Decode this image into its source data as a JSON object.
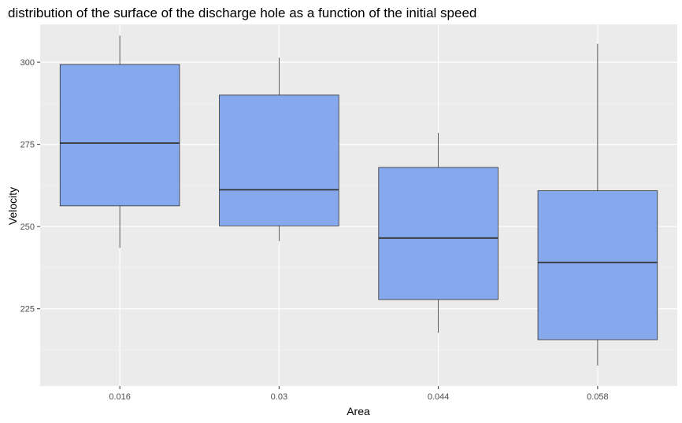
{
  "chart_data": {
    "type": "boxplot",
    "title": "distribution of the surface of the discharge hole as a function of the initial speed",
    "xlabel": "Area",
    "ylabel": "Velocity",
    "categories": [
      "0.016",
      "0.03",
      "0.044",
      "0.058"
    ],
    "boxes": [
      {
        "category": "0.016",
        "whisker_low": 243.5,
        "q1": 256.3,
        "median": 275.4,
        "q3": 299.3,
        "whisker_high": 308.1
      },
      {
        "category": "0.03",
        "whisker_low": 245.6,
        "q1": 250.2,
        "median": 261.2,
        "q3": 290.0,
        "whisker_high": 301.4
      },
      {
        "category": "0.044",
        "whisker_low": 217.7,
        "q1": 227.8,
        "median": 246.5,
        "q3": 268.0,
        "whisker_high": 278.5
      },
      {
        "category": "0.058",
        "whisker_low": 207.7,
        "q1": 215.6,
        "median": 239.1,
        "q3": 260.9,
        "whisker_high": 305.6
      }
    ],
    "y_ticks": [
      225,
      250,
      275,
      300
    ],
    "ylim": [
      201.5,
      311.5
    ],
    "grid": true,
    "colors": {
      "panel_bg": "#ebebeb",
      "grid_major": "#ffffff",
      "grid_minor": "#f5f5f5",
      "box_fill": "#86a8ec",
      "box_stroke": "#333333"
    }
  }
}
